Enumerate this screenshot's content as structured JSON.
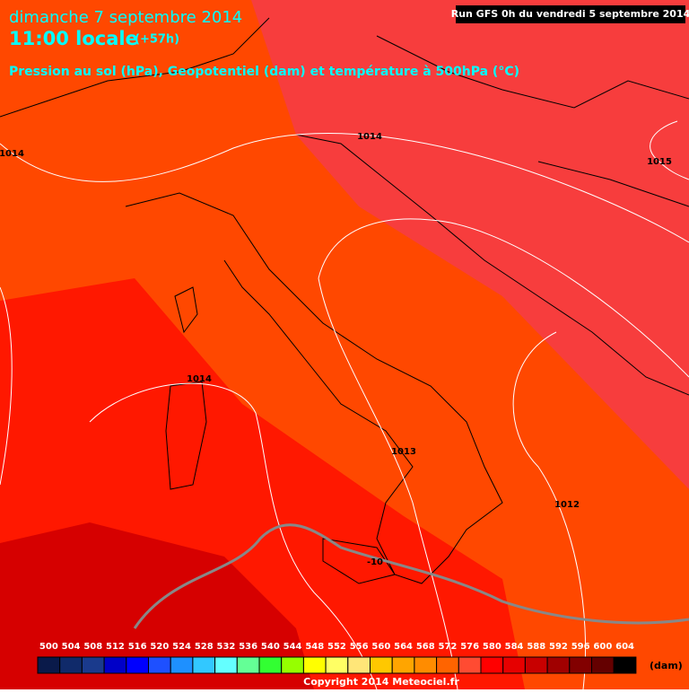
{
  "header": {
    "date": "dimanche 7 septembre 2014",
    "time": "11:00 locale",
    "lead": "(+57h)",
    "subtitle": "Pression au sol (hPa), Geopotentiel (dam) et température à 500hPa (°C)",
    "run": "Run GFS 0h du vendredi 5 septembre 2014"
  },
  "isobar_labels": [
    "1014",
    "1014",
    "1015",
    "1014",
    "1013",
    "1012",
    "-10"
  ],
  "legend": {
    "values": [
      500,
      504,
      508,
      512,
      516,
      520,
      524,
      528,
      532,
      536,
      540,
      544,
      548,
      552,
      556,
      560,
      564,
      568,
      572,
      576,
      580,
      584,
      588,
      592,
      596,
      600,
      604
    ],
    "colors": [
      "#0a1a4a",
      "#102a6a",
      "#1a3a8c",
      "#0000c8",
      "#0000ff",
      "#1e50ff",
      "#1e90ff",
      "#32c8ff",
      "#64ffff",
      "#64ff96",
      "#32ff32",
      "#96ff00",
      "#ffff00",
      "#ffff64",
      "#ffe678",
      "#ffc800",
      "#ffa500",
      "#ff8c00",
      "#ff6400",
      "#ff4b32",
      "#ff0000",
      "#e60000",
      "#c80000",
      "#a00000",
      "#820000",
      "#640000",
      "#000000"
    ],
    "unit": "(dam)"
  },
  "copyright": "Copyright 2014 Meteociel.fr"
}
